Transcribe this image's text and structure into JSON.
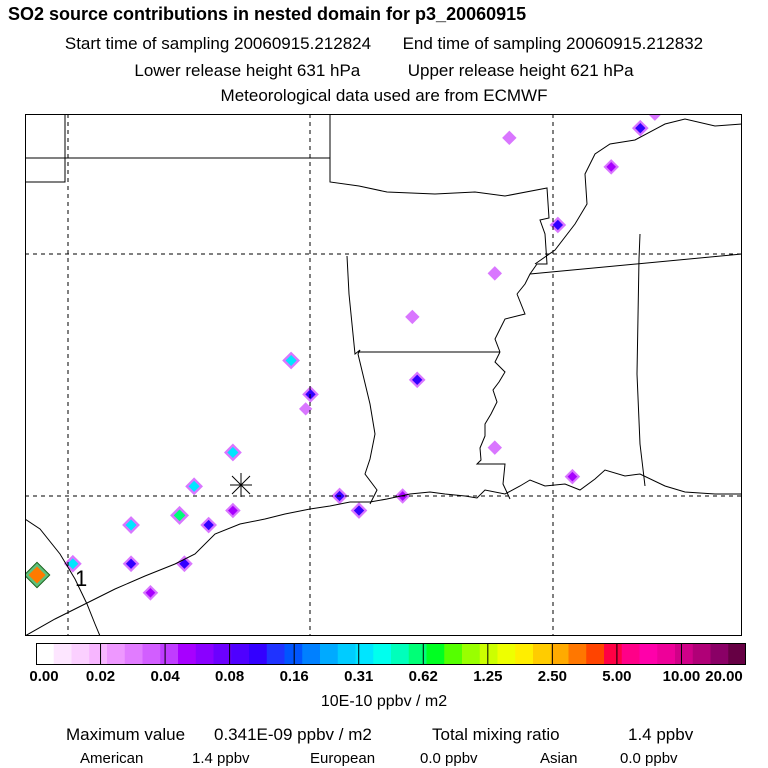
{
  "header": {
    "title": "SO2 source contributions in nested domain for p3_20060915",
    "start_label": "Start time of sampling 20060915.212824",
    "end_label": "End time of sampling 20060915.212832",
    "lower_label": "Lower release height  631 hPa",
    "upper_label": "Upper release height  621 hPa",
    "met_label": "Meteorological data used are from ECMWF"
  },
  "map": {
    "receptor_marker": "asterisk-icon",
    "source_label": "1",
    "plumes": [
      {
        "lon": -99.9,
        "lat": 28.6,
        "level": 7
      },
      {
        "lon": -97.7,
        "lat": 29.6,
        "level": 8
      },
      {
        "lon": -97.4,
        "lat": 30.2,
        "level": 7
      },
      {
        "lon": -97.1,
        "lat": 29.4,
        "level": 6
      },
      {
        "lon": -96.6,
        "lat": 30.9,
        "level": 7
      },
      {
        "lon": -95.4,
        "lat": 32.8,
        "level": 7
      },
      {
        "lon": -95.0,
        "lat": 32.1,
        "level": 6
      },
      {
        "lon": -94.4,
        "lat": 30.0,
        "level": 6
      },
      {
        "lon": -92.8,
        "lat": 32.4,
        "level": 6
      },
      {
        "lon": -94.0,
        "lat": 29.7,
        "level": 6
      },
      {
        "lon": -98.7,
        "lat": 29.4,
        "level": 7
      },
      {
        "lon": -98.7,
        "lat": 28.6,
        "level": 6
      },
      {
        "lon": -97.6,
        "lat": 28.6,
        "level": 6
      },
      {
        "lon": -96.6,
        "lat": 29.7,
        "level": 5
      },
      {
        "lon": -89.9,
        "lat": 35.6,
        "level": 6
      },
      {
        "lon": -88.8,
        "lat": 36.8,
        "level": 5
      },
      {
        "lon": -88.2,
        "lat": 37.6,
        "level": 6
      },
      {
        "lon": -87.6,
        "lat": 38.3,
        "level": 7
      },
      {
        "lon": -92.9,
        "lat": 33.7,
        "level": 4
      },
      {
        "lon": -91.2,
        "lat": 34.6,
        "level": 4
      },
      {
        "lon": -91.2,
        "lat": 31.0,
        "level": 4
      },
      {
        "lon": -90.9,
        "lat": 37.4,
        "level": 4
      },
      {
        "lon": -95.1,
        "lat": 31.8,
        "level": 3
      },
      {
        "lon": -93.1,
        "lat": 30.0,
        "level": 5
      },
      {
        "lon": -89.6,
        "lat": 30.4,
        "level": 5
      },
      {
        "lon": -98.3,
        "lat": 28.0,
        "level": 5
      },
      {
        "lon": -87.9,
        "lat": 37.9,
        "level": 4
      }
    ]
  },
  "colorbar": {
    "colors": [
      "#ffffff",
      "#fde6ff",
      "#fbd0ff",
      "#f7b6ff",
      "#ee98ff",
      "#e17cff",
      "#d25eff",
      "#c03cff",
      "#a700ff",
      "#8a00ff",
      "#6c00ff",
      "#4f00ff",
      "#3300ff",
      "#1f33ff",
      "#0055ff",
      "#0080ff",
      "#00aaff",
      "#00ccff",
      "#00e5ff",
      "#00ffee",
      "#00ffbb",
      "#00ff77",
      "#00ff22",
      "#55ff00",
      "#99ff00",
      "#ccff00",
      "#eeff00",
      "#ffee00",
      "#ffcc00",
      "#ffaa00",
      "#ff7700",
      "#ff4400",
      "#ff0044",
      "#ff0088",
      "#ff00aa",
      "#ee0099",
      "#d00088",
      "#b00077",
      "#8a0066",
      "#660044"
    ],
    "ticks": [
      "0.00",
      "0.02",
      "0.04",
      "0.08",
      "0.16",
      "0.31",
      "0.62",
      "1.25",
      "2.50",
      "5.00",
      "10.00",
      "20.00"
    ],
    "units": "10E-10 ppbv / m2"
  },
  "stats": {
    "max_label": "Maximum value",
    "max_value": "0.341E-09 ppbv / m2",
    "total_label": "Total mixing ratio",
    "total_value": "1.4 ppbv",
    "american_label": "American",
    "american_value": "1.4 ppbv",
    "european_label": "European",
    "european_value": "0.0 ppbv",
    "asian_label": "Asian",
    "asian_value": "0.0 ppbv"
  }
}
